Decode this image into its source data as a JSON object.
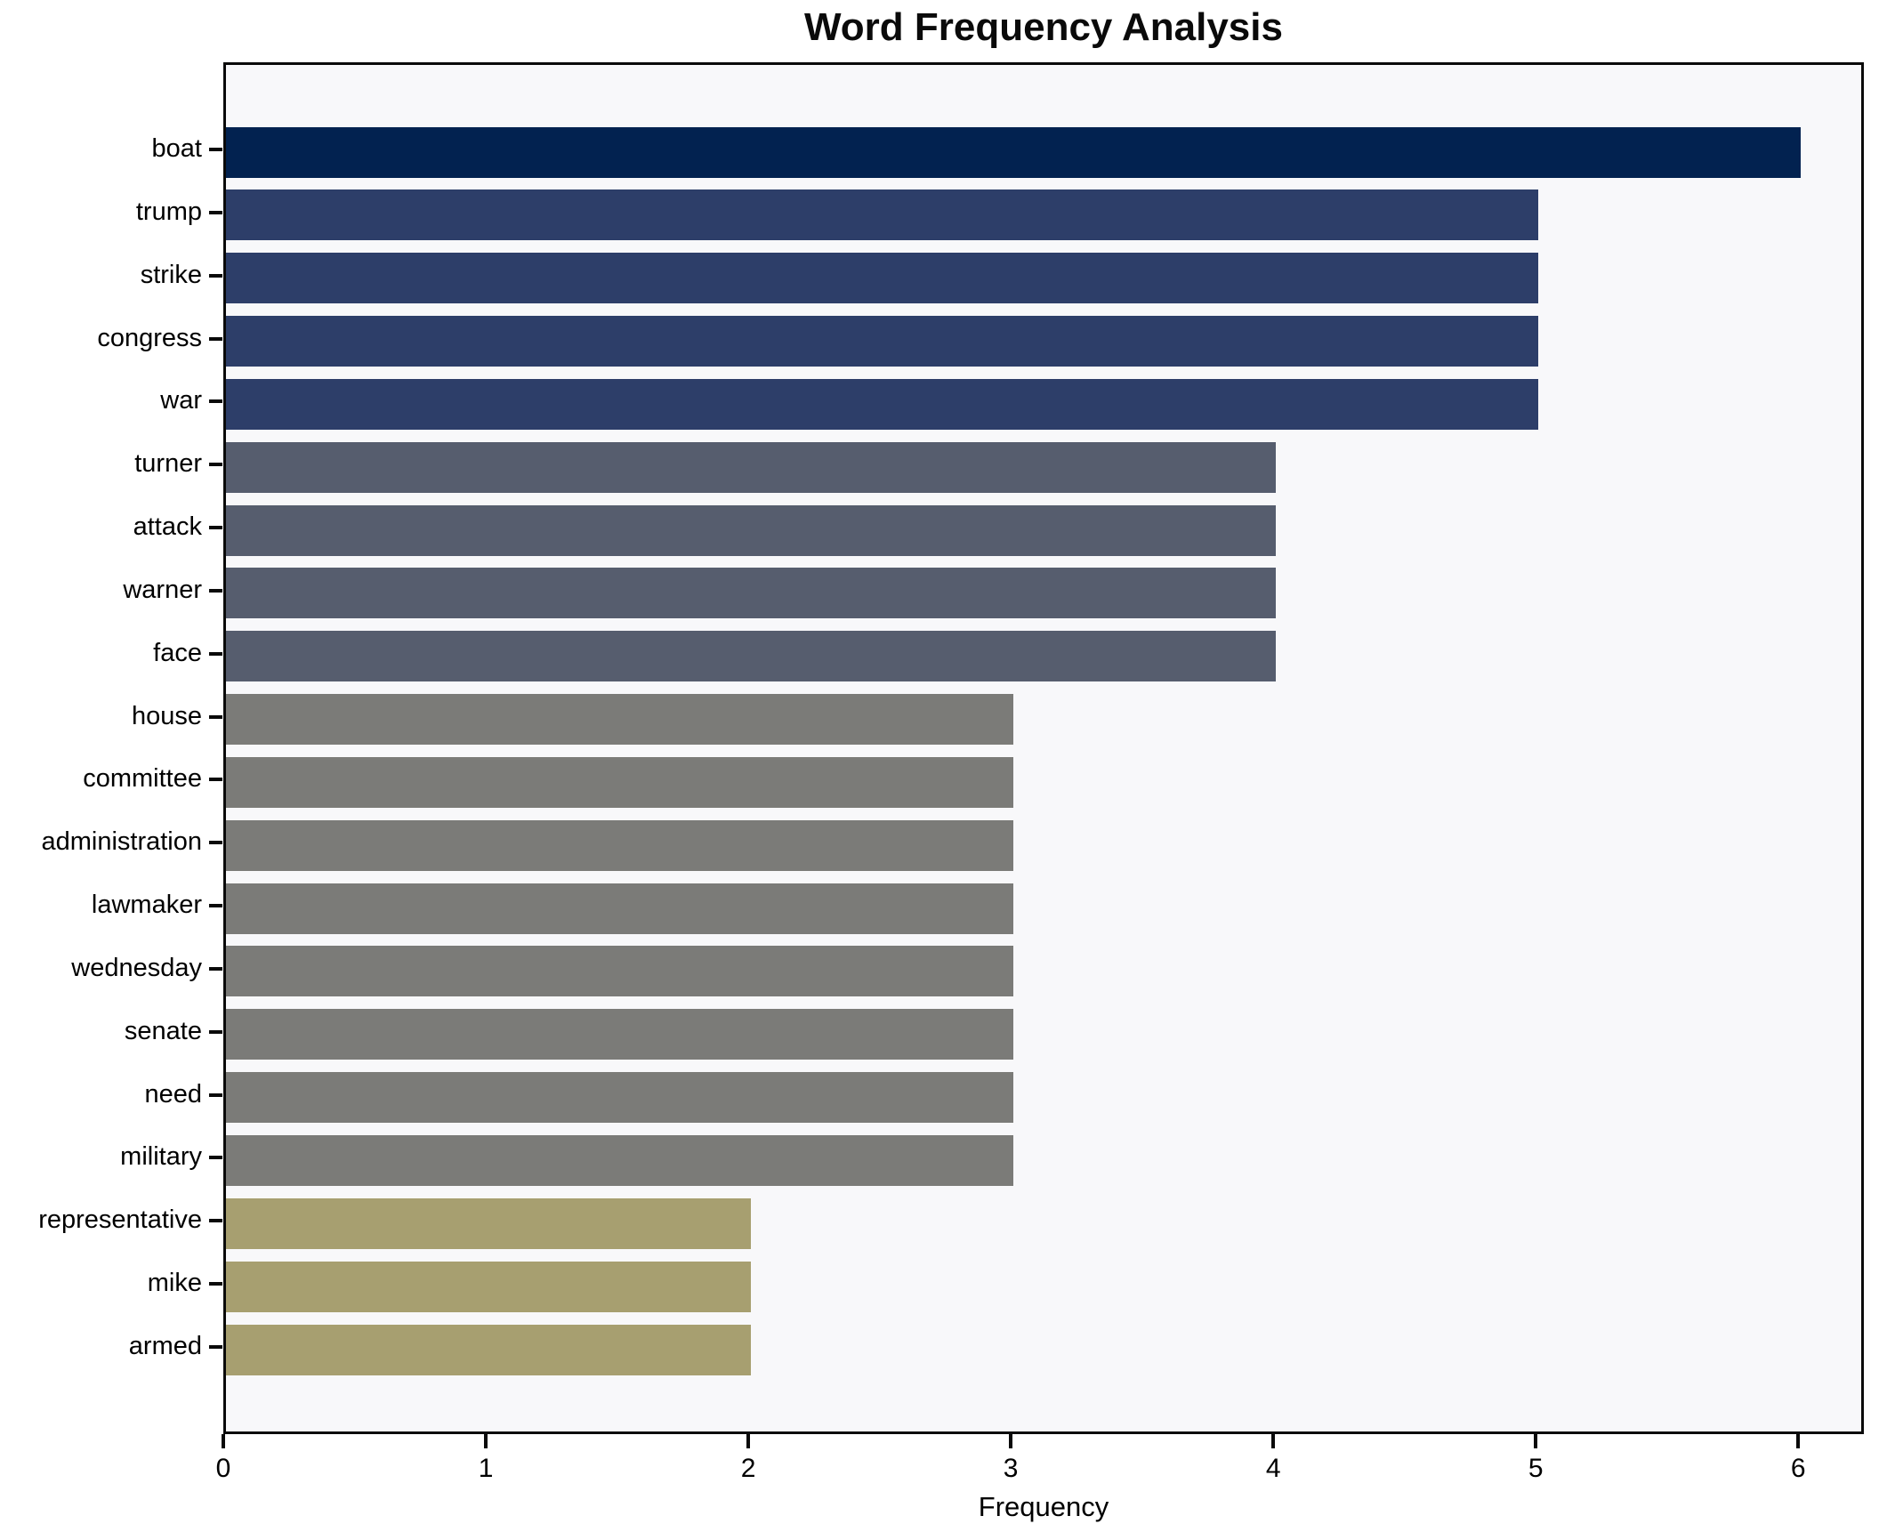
{
  "chart_data": {
    "type": "bar",
    "orientation": "horizontal",
    "title": "Word Frequency Analysis",
    "xlabel": "Frequency",
    "ylabel": "",
    "categories": [
      "boat",
      "trump",
      "strike",
      "congress",
      "war",
      "turner",
      "attack",
      "warner",
      "face",
      "house",
      "committee",
      "administration",
      "lawmaker",
      "wednesday",
      "senate",
      "need",
      "military",
      "representative",
      "mike",
      "armed"
    ],
    "values": [
      6,
      5,
      5,
      5,
      5,
      4,
      4,
      4,
      4,
      3,
      3,
      3,
      3,
      3,
      3,
      3,
      3,
      2,
      2,
      2
    ],
    "bar_colors": [
      "#022250",
      "#2d3e69",
      "#2d3e69",
      "#2d3e69",
      "#2d3e69",
      "#565d6e",
      "#565d6e",
      "#565d6e",
      "#565d6e",
      "#7b7b78",
      "#7b7b78",
      "#7b7b78",
      "#7b7b78",
      "#7b7b78",
      "#7b7b78",
      "#7b7b78",
      "#7b7b78",
      "#a79f70",
      "#a79f70",
      "#a79f70"
    ],
    "xticks": [
      0,
      1,
      2,
      3,
      4,
      5,
      6
    ],
    "xlim": [
      0,
      6.25
    ],
    "grid": false,
    "legend": null,
    "colors": {
      "value_6": "#022250",
      "value_5": "#2d3e69",
      "value_4": "#565d6e",
      "value_3": "#7b7b78",
      "value_2": "#a79f70",
      "plot_background": "#f8f8fa",
      "figure_background": "#ffffff",
      "spine": "#0a0a0a",
      "text": "#000000"
    }
  }
}
